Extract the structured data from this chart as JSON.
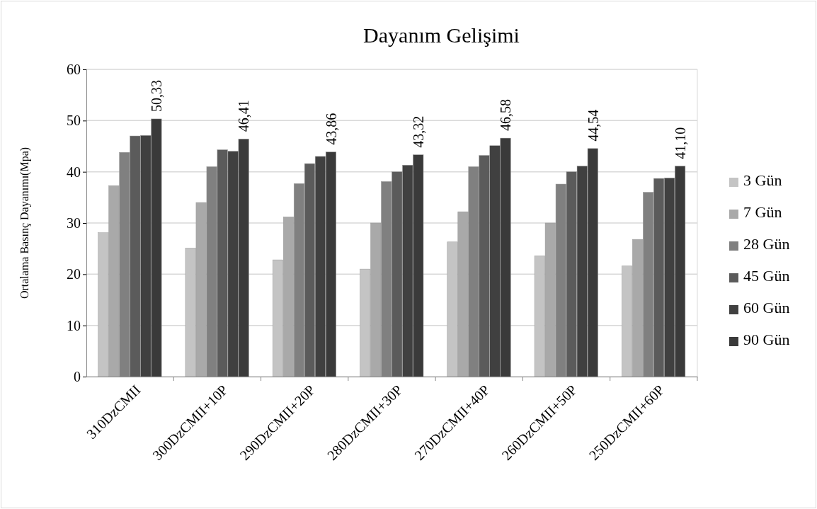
{
  "chart_data": {
    "type": "bar",
    "title": "Dayanım Gelişimi",
    "ylabel": "Ortalama Basınç Dayanımı(Mpa)",
    "categories": [
      "310DzCMII",
      "300DzCMII+10P",
      "290DzCMII+20P",
      "280DzCMII+30P",
      "270DzCMII+40P",
      "260DzCMII+50P",
      "250DzCMII+60P"
    ],
    "series": [
      {
        "name": "3 Gün",
        "color": "#c4c4c4",
        "values": [
          28.1,
          25.1,
          22.8,
          21.0,
          26.3,
          23.6,
          21.6
        ]
      },
      {
        "name": "7 Gün",
        "color": "#a9a9a9",
        "values": [
          37.3,
          34.0,
          31.2,
          30.0,
          32.2,
          30.0,
          26.8
        ]
      },
      {
        "name": "28 Gün",
        "color": "#808080",
        "values": [
          43.8,
          41.0,
          37.7,
          38.1,
          41.0,
          37.6,
          36.0
        ]
      },
      {
        "name": "45 Gün",
        "color": "#5b5b5b",
        "values": [
          47.0,
          44.3,
          41.6,
          40.0,
          43.2,
          40.0,
          38.7
        ]
      },
      {
        "name": "60 Gün",
        "color": "#404040",
        "values": [
          47.1,
          44.0,
          43.0,
          41.3,
          45.1,
          41.1,
          38.8
        ]
      },
      {
        "name": "90 Gün",
        "color": "#3a3a3a",
        "values": [
          50.33,
          46.41,
          43.86,
          43.32,
          46.58,
          44.54,
          41.1
        ],
        "value_labels": [
          "50,33",
          "46,41",
          "43,86",
          "43,32",
          "46,58",
          "44,54",
          "41,10"
        ]
      }
    ],
    "ylim": [
      0,
      60
    ],
    "yticks": [
      0,
      10,
      20,
      30,
      40,
      50,
      60
    ],
    "grid": "y",
    "legend": "right"
  }
}
